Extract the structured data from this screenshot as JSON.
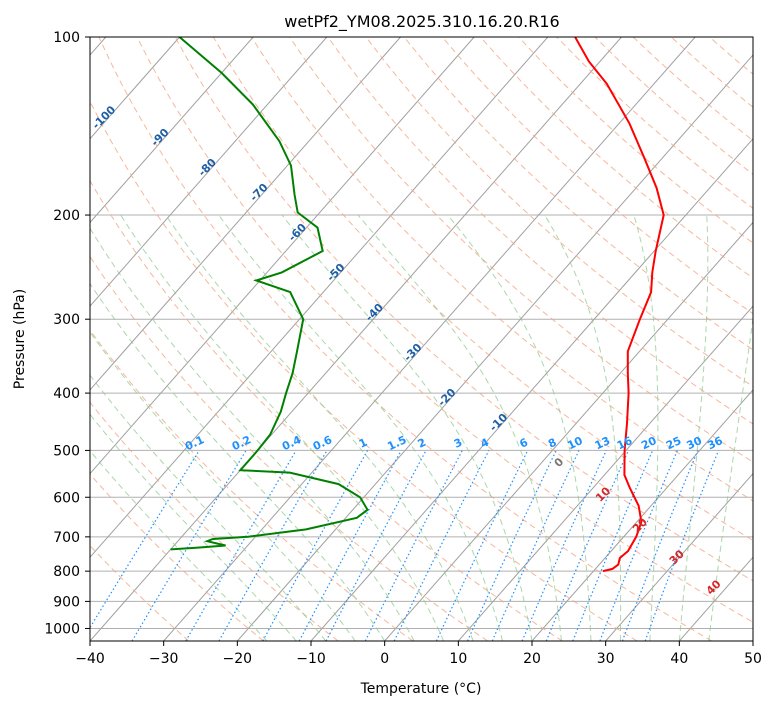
{
  "chart_data": {
    "type": "skew-t",
    "title": "wetPf2_YM08.2025.310.16.20.R16",
    "xlabel": "Temperature (°C)",
    "ylabel": "Pressure (hPa)",
    "xlim": [
      -40,
      50
    ],
    "ylim": [
      1050,
      100
    ],
    "x_ticks": [
      -40,
      -30,
      -20,
      -10,
      0,
      10,
      20,
      30,
      40,
      50
    ],
    "y_ticks": [
      100,
      200,
      300,
      400,
      500,
      600,
      700,
      800,
      900,
      1000
    ],
    "y_scale": "log",
    "grid": true,
    "temperature_profile": {
      "color": "#ff0000",
      "points": [
        [
          800,
          21.3
        ],
        [
          793,
          22.3
        ],
        [
          780,
          22.6
        ],
        [
          760,
          22.0
        ],
        [
          740,
          22.3
        ],
        [
          700,
          21.7
        ],
        [
          660,
          20.6
        ],
        [
          620,
          18.3
        ],
        [
          580,
          15.1
        ],
        [
          550,
          12.7
        ],
        [
          500,
          9.8
        ],
        [
          450,
          6.9
        ],
        [
          400,
          3.5
        ],
        [
          370,
          1.0
        ],
        [
          340,
          -1.6
        ],
        [
          300,
          -3.8
        ],
        [
          270,
          -5.5
        ],
        [
          250,
          -7.7
        ],
        [
          230,
          -9.8
        ],
        [
          200,
          -13.0
        ],
        [
          180,
          -17.2
        ],
        [
          160,
          -22.5
        ],
        [
          140,
          -28.6
        ],
        [
          120,
          -36.4
        ],
        [
          110,
          -41.5
        ],
        [
          100,
          -46.3
        ]
      ]
    },
    "dewpoint_profile": {
      "color": "#008000",
      "points": [
        [
          735,
          -40.0
        ],
        [
          730,
          -36.5
        ],
        [
          724,
          -33.0
        ],
        [
          720,
          -34.0
        ],
        [
          712,
          -36.0
        ],
        [
          706,
          -35.5
        ],
        [
          700,
          -31.0
        ],
        [
          680,
          -24.0
        ],
        [
          650,
          -18.5
        ],
        [
          630,
          -18.0
        ],
        [
          600,
          -20.5
        ],
        [
          570,
          -25.0
        ],
        [
          545,
          -33.0
        ],
        [
          540,
          -40.0
        ],
        [
          500,
          -40.0
        ],
        [
          470,
          -40.2
        ],
        [
          430,
          -41.5
        ],
        [
          400,
          -43.0
        ],
        [
          370,
          -44.5
        ],
        [
          340,
          -46.5
        ],
        [
          300,
          -49.5
        ],
        [
          270,
          -54.5
        ],
        [
          258,
          -60.5
        ],
        [
          250,
          -58.0
        ],
        [
          230,
          -55.0
        ],
        [
          210,
          -58.5
        ],
        [
          198,
          -63.0
        ],
        [
          185,
          -65.5
        ],
        [
          165,
          -69.5
        ],
        [
          150,
          -74.0
        ],
        [
          130,
          -82.0
        ],
        [
          115,
          -90.0
        ],
        [
          100,
          -100.0
        ]
      ]
    },
    "dry_adiabat_labels": [
      "-100",
      "-90",
      "-80",
      "-70",
      "-60",
      "-50",
      "-40",
      "-30",
      "-20",
      "-10"
    ],
    "moist_adiabat_labels": [
      "0",
      "10",
      "20",
      "30",
      "40"
    ],
    "mixing_ratio_labels": [
      "0.1",
      "0.2",
      "0.4",
      "0.6",
      "1",
      "1.5",
      "2",
      "3",
      "4",
      "6",
      "8",
      "10",
      "13",
      "16",
      "20",
      "25",
      "30",
      "36"
    ]
  }
}
